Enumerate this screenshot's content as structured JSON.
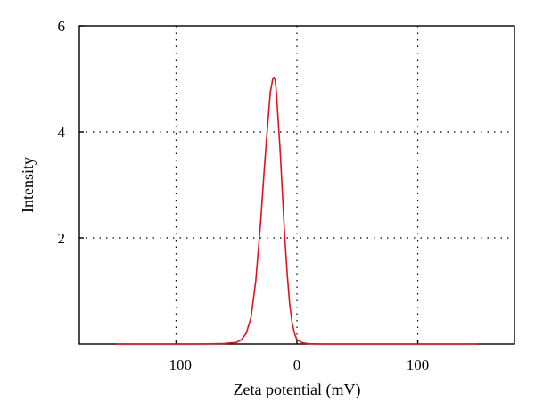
{
  "chart_data": {
    "type": "line",
    "title": "",
    "xlabel": "Zeta potential (mV)",
    "ylabel": "Intensity",
    "xlim": [
      -180,
      180
    ],
    "ylim": [
      0,
      6
    ],
    "x_ticks": [
      -100,
      0,
      100
    ],
    "x_tick_labels": [
      "−100",
      "0",
      "100"
    ],
    "y_ticks": [
      2,
      4,
      6
    ],
    "y_tick_labels": [
      "2",
      "4",
      "6"
    ],
    "grid": true,
    "grid_style": "dotted",
    "line_color": "#e0141c",
    "series": [
      {
        "x": [
          -150,
          -80,
          -60,
          -50,
          -46,
          -42,
          -38,
          -34,
          -30,
          -27,
          -24,
          -22,
          -20,
          -19,
          -18,
          -17,
          -16,
          -14,
          -12,
          -10,
          -8,
          -6,
          -4,
          -2,
          0,
          5,
          10,
          20,
          50,
          100,
          150
        ],
        "y": [
          0,
          0,
          0.01,
          0.03,
          0.08,
          0.2,
          0.5,
          1.2,
          2.3,
          3.3,
          4.2,
          4.75,
          5.0,
          5.03,
          4.98,
          4.75,
          4.4,
          3.7,
          2.85,
          2.0,
          1.3,
          0.75,
          0.4,
          0.2,
          0.08,
          0.02,
          0.005,
          0,
          0,
          0,
          0
        ]
      }
    ]
  }
}
